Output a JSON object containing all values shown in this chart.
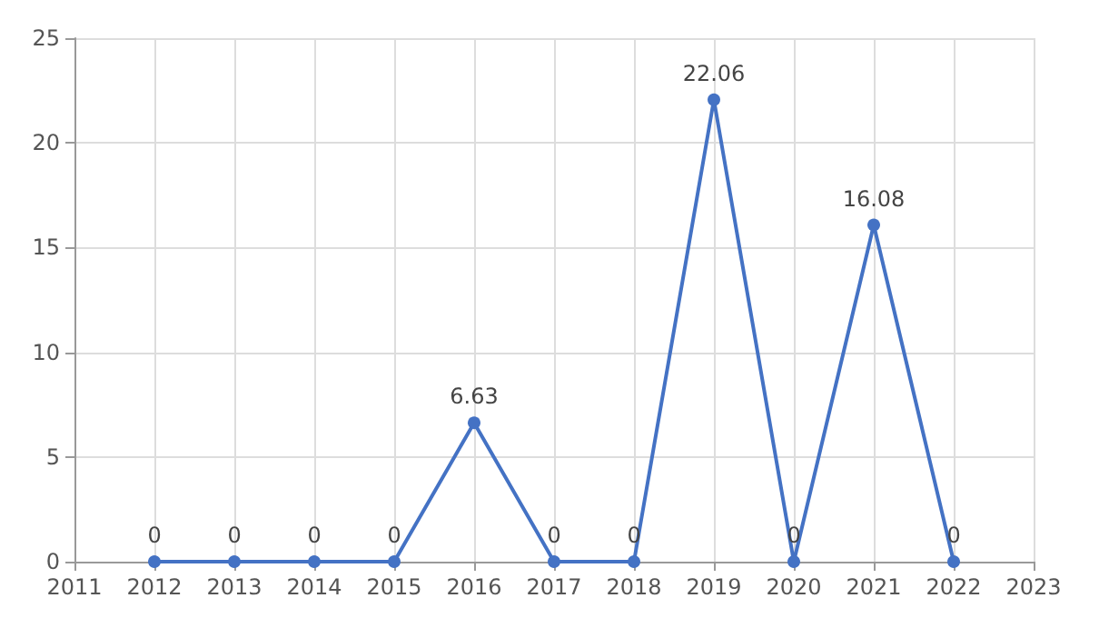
{
  "chart_data": {
    "type": "line",
    "x": [
      2012,
      2013,
      2014,
      2015,
      2016,
      2017,
      2018,
      2019,
      2020,
      2021,
      2022
    ],
    "series": [
      {
        "color": "#4472c4",
        "values": [
          0,
          0,
          0,
          0,
          6.63,
          0,
          0,
          22.06,
          0,
          16.08,
          0
        ]
      }
    ],
    "xlim": [
      2011,
      2023
    ],
    "xticks": [
      2011,
      2012,
      2013,
      2014,
      2015,
      2016,
      2017,
      2018,
      2019,
      2020,
      2021,
      2022,
      2023
    ],
    "ylim": [
      0,
      25
    ],
    "yticks": [
      0,
      5,
      10,
      15,
      20,
      25
    ],
    "grid": true,
    "marker": "circle",
    "line_style": "solid",
    "data_labels": true
  }
}
